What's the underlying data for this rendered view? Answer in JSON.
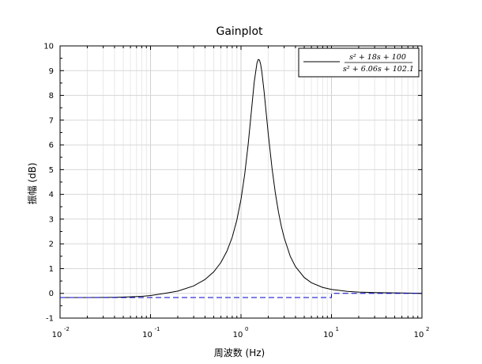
{
  "chart_data": {
    "type": "line",
    "title": "Gainplot",
    "xlabel": "周波数 (Hz)",
    "ylabel": "振幅 (dB)",
    "x_scale": "log",
    "xlim": [
      0.01,
      100
    ],
    "ylim": [
      -1,
      10
    ],
    "x_ticks": [
      {
        "base": "10",
        "exp": "-2",
        "value": 0.01
      },
      {
        "base": "10",
        "exp": "-1",
        "value": 0.1
      },
      {
        "base": "10",
        "exp": "0",
        "value": 1
      },
      {
        "base": "10",
        "exp": "1",
        "value": 10
      },
      {
        "base": "10",
        "exp": "2",
        "value": 100
      }
    ],
    "y_ticks": [
      "-1",
      "0",
      "1",
      "2",
      "3",
      "4",
      "5",
      "6",
      "7",
      "8",
      "9",
      "10"
    ],
    "grid": true,
    "legend_position": "top-right",
    "legend": {
      "numerator": "s² + 18s + 100",
      "denominator": "s² + 6.06s + 102.1"
    },
    "series": [
      {
        "style": "solid",
        "color": "#000000",
        "x": [
          0.01,
          0.02,
          0.04,
          0.06,
          0.08,
          0.1,
          0.15,
          0.2,
          0.3,
          0.4,
          0.5,
          0.6,
          0.7,
          0.8,
          0.9,
          1.0,
          1.1,
          1.2,
          1.3,
          1.4,
          1.5,
          1.55,
          1.6,
          1.65,
          1.7,
          1.8,
          1.9,
          2.0,
          2.2,
          2.4,
          2.6,
          2.8,
          3.0,
          3.5,
          4.0,
          5.0,
          6.0,
          8.0,
          10.0,
          15.0,
          20.0,
          30.0,
          50.0,
          100.0
        ],
        "y": [
          -0.17,
          -0.17,
          -0.16,
          -0.14,
          -0.12,
          -0.09,
          0.01,
          0.09,
          0.3,
          0.56,
          0.87,
          1.25,
          1.71,
          2.27,
          2.96,
          3.8,
          4.82,
          6.02,
          7.33,
          8.54,
          9.3,
          9.45,
          9.43,
          9.25,
          8.95,
          8.15,
          7.28,
          6.45,
          5.07,
          4.04,
          3.27,
          2.69,
          2.25,
          1.5,
          1.08,
          0.64,
          0.43,
          0.24,
          0.16,
          0.08,
          0.05,
          0.03,
          0.02,
          0.0
        ]
      },
      {
        "style": "dashed",
        "color": "#0000cc",
        "x": [
          0.01,
          10.0,
          10.0,
          100.0
        ],
        "y": [
          -0.17,
          -0.17,
          0.0,
          0.0
        ]
      }
    ]
  }
}
